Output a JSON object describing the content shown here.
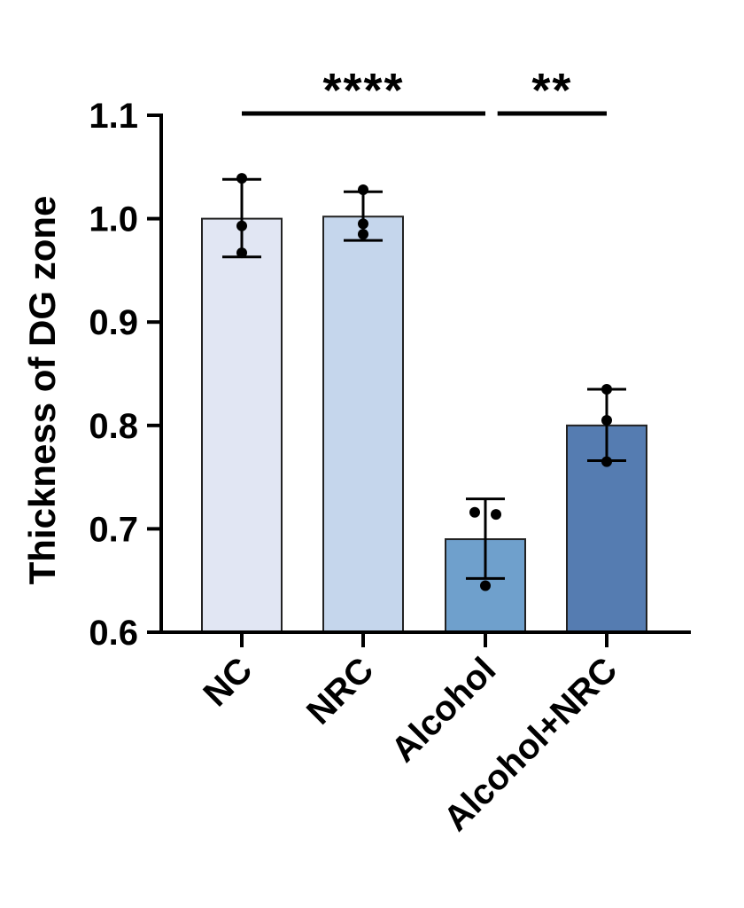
{
  "chart_data": {
    "type": "bar",
    "title": "",
    "xlabel": "",
    "ylabel": "Thickness of DG zone",
    "ylim": [
      0.6,
      1.1
    ],
    "yticks": [
      "0.6",
      "0.7",
      "0.8",
      "0.9",
      "1.0",
      "1.1"
    ],
    "categories": [
      "NC",
      "NRC",
      "Alcohol",
      "Alcohol+NRC"
    ],
    "values": [
      1.0,
      1.002,
      0.69,
      0.8
    ],
    "error_high": [
      1.038,
      1.026,
      0.729,
      0.835
    ],
    "error_low": [
      0.963,
      0.979,
      0.652,
      0.766
    ],
    "points": [
      [
        1.039,
        0.993,
        0.967
      ],
      [
        1.028,
        0.995,
        0.985
      ],
      [
        0.716,
        0.714,
        0.645
      ],
      [
        0.835,
        0.805,
        0.765
      ]
    ],
    "bar_colors": [
      "#e1e6f3",
      "#c5d6ec",
      "#6fa0cc",
      "#557cb1"
    ],
    "significance": [
      {
        "from": 0,
        "to": 2,
        "label": "****"
      },
      {
        "from": 2.1,
        "to": 3,
        "label": "**"
      }
    ],
    "grid": false
  }
}
